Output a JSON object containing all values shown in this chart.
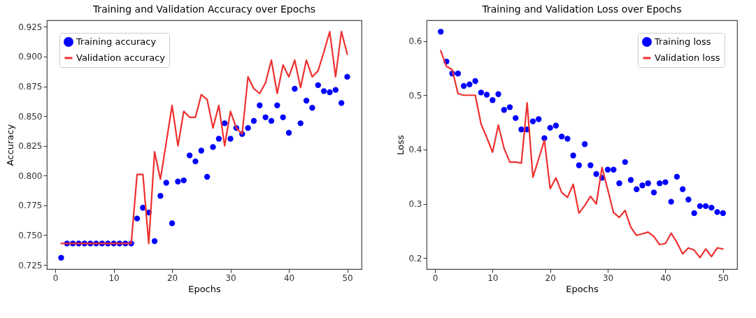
{
  "chart_data": [
    {
      "type": "line",
      "title": "Training and Validation Accuracy over Epochs",
      "xlabel": "Epochs",
      "ylabel": "Accuracy",
      "x": [
        1,
        2,
        3,
        4,
        5,
        6,
        7,
        8,
        9,
        10,
        11,
        12,
        13,
        14,
        15,
        16,
        17,
        18,
        19,
        20,
        21,
        22,
        23,
        24,
        25,
        26,
        27,
        28,
        29,
        30,
        31,
        32,
        33,
        34,
        35,
        36,
        37,
        38,
        39,
        40,
        41,
        42,
        43,
        44,
        45,
        46,
        47,
        48,
        49,
        50
      ],
      "series": [
        {
          "name": "Training accuracy",
          "type": "scatter",
          "marker": "circle",
          "color": "#0000ff",
          "values": [
            0.731,
            0.743,
            0.743,
            0.743,
            0.743,
            0.743,
            0.743,
            0.743,
            0.743,
            0.743,
            0.743,
            0.743,
            0.743,
            0.764,
            0.773,
            0.769,
            0.745,
            0.783,
            0.794,
            0.76,
            0.795,
            0.796,
            0.817,
            0.812,
            0.821,
            0.799,
            0.824,
            0.831,
            0.844,
            0.831,
            0.84,
            0.835,
            0.84,
            0.846,
            0.859,
            0.849,
            0.846,
            0.859,
            0.849,
            0.836,
            0.873,
            0.844,
            0.863,
            0.857,
            0.876,
            0.871,
            0.87,
            0.872,
            0.861,
            0.883
          ]
        },
        {
          "name": "Validation accuracy",
          "color": "#ee3030",
          "values": [
            0.743,
            0.743,
            0.743,
            0.743,
            0.743,
            0.743,
            0.743,
            0.743,
            0.743,
            0.743,
            0.743,
            0.743,
            0.743,
            0.801,
            0.801,
            0.743,
            0.82,
            0.797,
            0.828,
            0.859,
            0.825,
            0.854,
            0.849,
            0.849,
            0.868,
            0.864,
            0.84,
            0.859,
            0.825,
            0.854,
            0.84,
            0.835,
            0.883,
            0.873,
            0.869,
            0.878,
            0.897,
            0.869,
            0.893,
            0.883,
            0.897,
            0.874,
            0.897,
            0.883,
            0.888,
            0.904,
            0.921,
            0.883,
            0.921,
            0.902
          ]
        }
      ],
      "xlim": [
        -1.45,
        52.45
      ],
      "xticks": [
        0,
        10,
        20,
        30,
        40,
        50
      ],
      "ylim": [
        0.7215,
        0.9305
      ],
      "yticks": [
        0.725,
        {
          "value": 0.75,
          "label": "0.750"
        },
        0.775,
        {
          "value": 0.8,
          "label": "0.800"
        },
        0.825,
        {
          "value": 0.85,
          "label": "0.850"
        },
        0.875,
        {
          "value": 0.9,
          "label": "0.900"
        },
        0.925
      ],
      "grid": false,
      "legend": "top left"
    },
    {
      "type": "line",
      "title": "Training and Validation Loss over Epochs",
      "xlabel": "Epochs",
      "ylabel": "Loss",
      "x": [
        1,
        2,
        3,
        4,
        5,
        6,
        7,
        8,
        9,
        10,
        11,
        12,
        13,
        14,
        15,
        16,
        17,
        18,
        19,
        20,
        21,
        22,
        23,
        24,
        25,
        26,
        27,
        28,
        29,
        30,
        31,
        32,
        33,
        34,
        35,
        36,
        37,
        38,
        39,
        40,
        41,
        42,
        43,
        44,
        45,
        46,
        47,
        48,
        49,
        50
      ],
      "series": [
        {
          "name": "Training loss",
          "type": "scatter",
          "marker": "circle",
          "color": "#0000ff",
          "values": [
            0.617,
            0.562,
            0.54,
            0.54,
            0.517,
            0.52,
            0.526,
            0.505,
            0.501,
            0.491,
            0.502,
            0.473,
            0.478,
            0.458,
            0.437,
            0.437,
            0.452,
            0.456,
            0.421,
            0.44,
            0.444,
            0.424,
            0.42,
            0.389,
            0.371,
            0.41,
            0.371,
            0.355,
            0.348,
            0.363,
            0.363,
            0.338,
            0.377,
            0.344,
            0.327,
            0.334,
            0.338,
            0.321,
            0.338,
            0.34,
            0.304,
            0.35,
            0.327,
            0.308,
            0.283,
            0.296,
            0.296,
            0.293,
            0.285,
            0.283
          ]
        },
        {
          "name": "Validation loss",
          "color": "#ee3030",
          "values": [
            0.582,
            0.553,
            0.547,
            0.503,
            0.5,
            0.5,
            0.5,
            0.447,
            0.422,
            0.395,
            0.445,
            0.402,
            0.377,
            0.377,
            0.375,
            0.486,
            0.349,
            0.383,
            0.417,
            0.328,
            0.348,
            0.321,
            0.312,
            0.336,
            0.283,
            0.297,
            0.314,
            0.3,
            0.367,
            0.326,
            0.284,
            0.275,
            0.288,
            0.257,
            0.242,
            0.245,
            0.248,
            0.24,
            0.225,
            0.227,
            0.246,
            0.229,
            0.208,
            0.219,
            0.215,
            0.201,
            0.217,
            0.203,
            0.219,
            0.217
          ]
        }
      ],
      "xlim": [
        -1.45,
        52.45
      ],
      "xticks": [
        0,
        10,
        20,
        30,
        40,
        50
      ],
      "ylim": [
        0.18,
        0.638
      ],
      "yticks": [
        0.2,
        0.3,
        0.4,
        0.5,
        0.6
      ],
      "grid": false,
      "legend": "top right"
    }
  ]
}
